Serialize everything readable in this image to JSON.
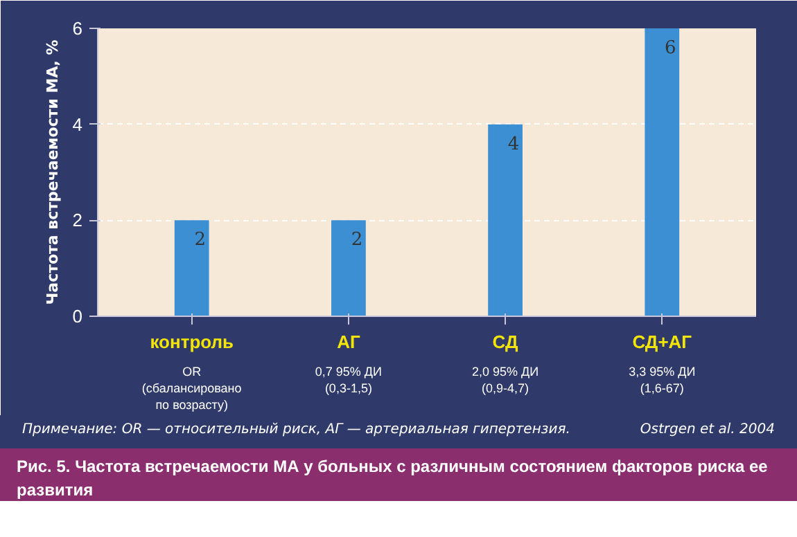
{
  "chart_data": {
    "type": "bar",
    "ylabel": "Частота встречаемости МА, %",
    "categories": [
      "контроль",
      "АГ",
      "СД",
      "СД+АГ"
    ],
    "values": [
      2,
      2,
      4,
      6
    ],
    "color": "#3b8fd2",
    "data_labels": true,
    "ylim": [
      0,
      6
    ],
    "yticks": [
      0,
      2,
      4,
      6
    ],
    "grid": "y",
    "annotations": [
      "OR\n(сбалансировано\nпо возрасту)",
      "0,7 95% ДИ\n(0,3-1,5)",
      "2,0 95% ДИ\n(0,9-4,7)",
      "3,3 95% ДИ\n(1,6-67)",
      "Примечание: OR — относительный риск, АГ — артериальная гипертензия.",
      "Ostrgen et al. 2004",
      "Рис. 5. Частота встречаемости МА у больных с различным состоянием факторов риска ее развития"
    ]
  }
}
